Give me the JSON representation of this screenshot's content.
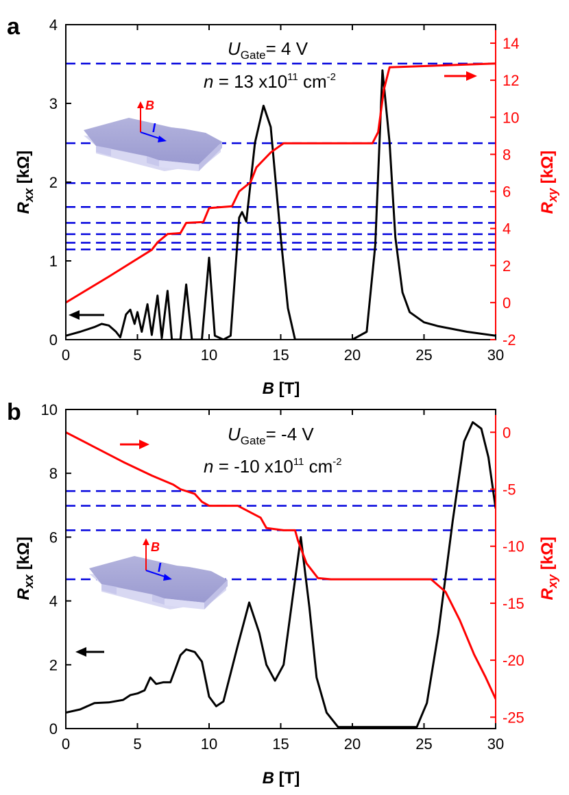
{
  "chart_data": [
    {
      "panel_label": "a",
      "type": "line",
      "xlabel": {
        "symbol": "B",
        "unit": " [T]"
      },
      "ylabel_left": {
        "symbol": "R",
        "sub": "xx",
        "unit": " [kΩ]"
      },
      "ylabel_right": {
        "symbol": "R",
        "sub": "xy",
        "unit": " [kΩ]"
      },
      "xlim": [
        0,
        30
      ],
      "ylim_left": [
        0,
        4
      ],
      "ylim_right": [
        -2,
        15
      ],
      "x_ticks": [
        "0",
        "5",
        "10",
        "15",
        "20",
        "25",
        "30"
      ],
      "y_left_ticks": [
        "0",
        "1",
        "2",
        "3",
        "4"
      ],
      "y_right_ticks": [
        "-2",
        "0",
        "2",
        "4",
        "6",
        "8",
        "10",
        "12",
        "14"
      ],
      "annotation": {
        "line1": {
          "symbol": "U",
          "sub": "Gate",
          "value": "= 4 V"
        },
        "line2": {
          "symbol": "n",
          "value": " = 13 x10",
          "sup1": "11",
          "unit": " cm",
          "sup2": "-2"
        }
      },
      "inset": {
        "b_label": "B",
        "i_label": "I"
      },
      "dashed_lines_right_axis": [
        12.9,
        8.6,
        6.45,
        5.16,
        4.3,
        3.69,
        3.23,
        2.87
      ],
      "series": [
        {
          "axis": "left",
          "color": "#000000",
          "points": [
            [
              0,
              0.05
            ],
            [
              1,
              0.1
            ],
            [
              2,
              0.16
            ],
            [
              2.5,
              0.2
            ],
            [
              3,
              0.18
            ],
            [
              3.5,
              0.1
            ],
            [
              3.8,
              0.03
            ],
            [
              4.2,
              0.32
            ],
            [
              4.5,
              0.38
            ],
            [
              4.8,
              0.2
            ],
            [
              5,
              0.35
            ],
            [
              5.3,
              0.1
            ],
            [
              5.7,
              0.45
            ],
            [
              6,
              0.06
            ],
            [
              6.4,
              0.56
            ],
            [
              6.7,
              0.02
            ],
            [
              7.1,
              0.62
            ],
            [
              7.4,
              0.0
            ],
            [
              8,
              0.0
            ],
            [
              8.4,
              0.7
            ],
            [
              8.8,
              0.0
            ],
            [
              9.5,
              0.0
            ],
            [
              10,
              1.04
            ],
            [
              10.4,
              0.05
            ],
            [
              11,
              0.0
            ],
            [
              11.5,
              0.05
            ],
            [
              12.1,
              1.55
            ],
            [
              12.3,
              1.62
            ],
            [
              12.6,
              1.5
            ],
            [
              13.2,
              2.5
            ],
            [
              13.8,
              2.97
            ],
            [
              14.3,
              2.7
            ],
            [
              15,
              1.3
            ],
            [
              15.5,
              0.4
            ],
            [
              16,
              0.0
            ],
            [
              20,
              0.0
            ],
            [
              21,
              0.1
            ],
            [
              21.6,
              1.2
            ],
            [
              22.1,
              3.42
            ],
            [
              22.6,
              2.5
            ],
            [
              23,
              1.3
            ],
            [
              23.5,
              0.6
            ],
            [
              24,
              0.35
            ],
            [
              25,
              0.22
            ],
            [
              26,
              0.17
            ],
            [
              28,
              0.1
            ],
            [
              30,
              0.05
            ]
          ]
        },
        {
          "axis": "right",
          "color": "#ff0000",
          "points": [
            [
              0,
              0
            ],
            [
              3,
              1.4
            ],
            [
              6,
              2.85
            ],
            [
              6.4,
              3.25
            ],
            [
              7.1,
              3.7
            ],
            [
              8.0,
              3.75
            ],
            [
              8.4,
              4.3
            ],
            [
              9.6,
              4.35
            ],
            [
              10,
              5.1
            ],
            [
              11.6,
              5.2
            ],
            [
              12.1,
              6.0
            ],
            [
              12.9,
              6.5
            ],
            [
              13.3,
              7.3
            ],
            [
              14.3,
              8.1
            ],
            [
              15.2,
              8.6
            ],
            [
              21.4,
              8.6
            ],
            [
              21.8,
              9.2
            ],
            [
              22.2,
              11.5
            ],
            [
              22.6,
              12.7
            ],
            [
              30,
              12.9
            ]
          ]
        }
      ]
    },
    {
      "panel_label": "b",
      "type": "line",
      "xlabel": {
        "symbol": "B",
        "unit": " [T]"
      },
      "ylabel_left": {
        "symbol": "R",
        "sub": "xx",
        "unit": " [kΩ]"
      },
      "ylabel_right": {
        "symbol": "R",
        "sub": "xy",
        "unit": " [kΩ]"
      },
      "xlim": [
        0,
        30
      ],
      "ylim_left": [
        0,
        10
      ],
      "ylim_right": [
        -26,
        2
      ],
      "x_ticks": [
        "0",
        "5",
        "10",
        "15",
        "20",
        "25",
        "30"
      ],
      "y_left_ticks": [
        "0",
        "2",
        "4",
        "6",
        "8",
        "10"
      ],
      "y_right_ticks": [
        "-25",
        "-20",
        "-15",
        "-10",
        "-5",
        "0"
      ],
      "annotation": {
        "line1": {
          "symbol": "U",
          "sub": "Gate",
          "value": "= -4 V"
        },
        "line2": {
          "symbol": "n",
          "value": " = -10 x10",
          "sup1": "11",
          "unit": " cm",
          "sup2": "-2"
        }
      },
      "inset": {
        "b_label": "B",
        "i_label": "I"
      },
      "dashed_lines_right_axis": [
        -5.16,
        -6.45,
        -8.6,
        -12.9
      ],
      "series": [
        {
          "axis": "left",
          "color": "#000000",
          "points": [
            [
              0,
              0.5
            ],
            [
              1,
              0.6
            ],
            [
              2,
              0.8
            ],
            [
              3,
              0.82
            ],
            [
              4,
              0.9
            ],
            [
              4.5,
              1.05
            ],
            [
              5,
              1.1
            ],
            [
              5.5,
              1.2
            ],
            [
              5.9,
              1.6
            ],
            [
              6.3,
              1.4
            ],
            [
              6.8,
              1.45
            ],
            [
              7.3,
              1.45
            ],
            [
              8,
              2.3
            ],
            [
              8.4,
              2.48
            ],
            [
              9,
              2.4
            ],
            [
              9.5,
              2.1
            ],
            [
              10,
              1.0
            ],
            [
              10.5,
              0.7
            ],
            [
              11,
              0.85
            ],
            [
              12,
              2.6
            ],
            [
              12.8,
              3.95
            ],
            [
              13.5,
              3.0
            ],
            [
              14,
              2.0
            ],
            [
              14.6,
              1.5
            ],
            [
              15.2,
              2.0
            ],
            [
              15.8,
              4.0
            ],
            [
              16.4,
              6.0
            ],
            [
              17,
              3.8
            ],
            [
              17.5,
              1.6
            ],
            [
              18.2,
              0.5
            ],
            [
              19,
              0.05
            ],
            [
              24.5,
              0.05
            ],
            [
              25.2,
              0.8
            ],
            [
              26,
              3.0
            ],
            [
              27,
              6.5
            ],
            [
              27.8,
              9.0
            ],
            [
              28.4,
              9.6
            ],
            [
              29,
              9.4
            ],
            [
              29.5,
              8.5
            ],
            [
              30,
              6.9
            ]
          ]
        },
        {
          "axis": "right",
          "color": "#ff0000",
          "points": [
            [
              0,
              0
            ],
            [
              2,
              -1.3
            ],
            [
              4,
              -2.6
            ],
            [
              6,
              -3.8
            ],
            [
              7.5,
              -4.6
            ],
            [
              8,
              -5.0
            ],
            [
              9,
              -5.4
            ],
            [
              9.5,
              -6.1
            ],
            [
              10,
              -6.45
            ],
            [
              12,
              -6.45
            ],
            [
              13.6,
              -7.5
            ],
            [
              14,
              -8.4
            ],
            [
              15.2,
              -8.6
            ],
            [
              16,
              -8.6
            ],
            [
              16.2,
              -9.5
            ],
            [
              16.8,
              -11.5
            ],
            [
              17.6,
              -12.8
            ],
            [
              18.5,
              -12.9
            ],
            [
              25.5,
              -12.9
            ],
            [
              26.5,
              -14.0
            ],
            [
              27.5,
              -16.5
            ],
            [
              28.5,
              -19.5
            ],
            [
              29.3,
              -21.5
            ],
            [
              30,
              -23.4
            ]
          ]
        }
      ]
    }
  ]
}
